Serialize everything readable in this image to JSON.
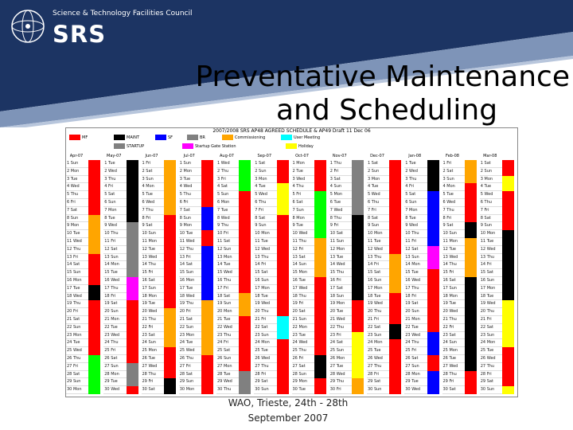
{
  "logo": {
    "tagline": "Science & Technology Facilities Council",
    "name": "SRS"
  },
  "slide": {
    "title_line1": "Preventative Maintenance",
    "title_line2": "and Scheduling"
  },
  "schedule": {
    "heading": "2007/2008 SRS AP48 AGREED SCHEDULE & AP49 Draft 11 Dec 06",
    "legend": [
      {
        "label": "MF",
        "color": "#ff0000"
      },
      {
        "label": "MAINT",
        "color": "#000000"
      },
      {
        "label": "SF",
        "color": "#0000ff"
      },
      {
        "label": "BR",
        "color": "#808080"
      },
      {
        "label": "Commissioning",
        "color": "#ffa500"
      },
      {
        "label": "User Meeting",
        "color": "#00ffff"
      },
      {
        "label": "STARTUP",
        "color": "#808080"
      },
      {
        "label": "Startup Gate Station",
        "color": "#ff00ff"
      },
      {
        "label": "Holiday",
        "color": "#ffff00"
      }
    ],
    "months": [
      "Apr-07",
      "May-07",
      "Jun-07",
      "Jul-07",
      "Aug-07",
      "Sep-07",
      "Oct-07",
      "Nov-07",
      "Dec-07",
      "Jan-08",
      "Feb-08",
      "Mar-08"
    ]
  },
  "colors": {
    "banner_dark": "#1c3463",
    "banner_light": "#7e94b8"
  },
  "footer": {
    "line1": "WAO, Trieste, 24th - 28th",
    "line2": "September 2007"
  }
}
